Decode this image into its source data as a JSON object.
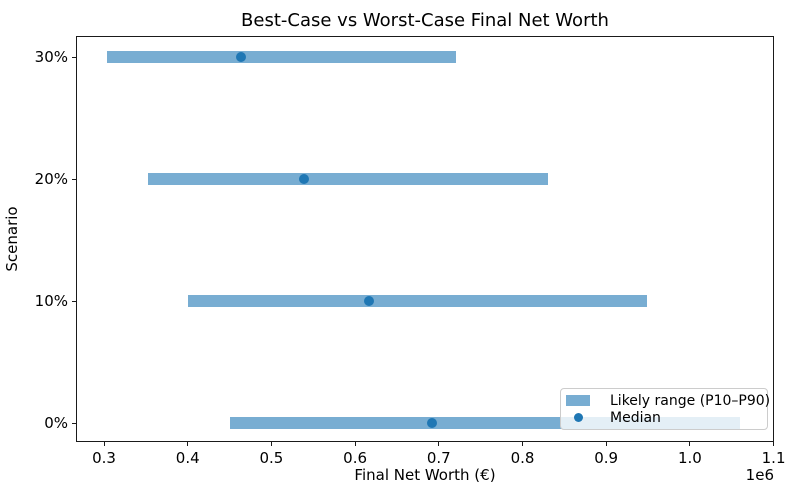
{
  "chart_data": {
    "type": "bar",
    "subtype": "horizontal-range-bars-with-median-dots",
    "title": "Best-Case vs Worst-Case Final Net Worth",
    "xlabel": "Final Net Worth (€)",
    "ylabel": "Scenario",
    "x_offset_label": "1e6",
    "categories": [
      "0%",
      "10%",
      "20%",
      "30%"
    ],
    "series": [
      {
        "name": "Likely range (P10–P90)",
        "type": "range-bar",
        "p10": [
          450000,
          400000,
          352000,
          304000
        ],
        "p90": [
          1060000,
          949000,
          831000,
          721000
        ]
      },
      {
        "name": "Median",
        "type": "scatter",
        "values": [
          692000,
          617000,
          539000,
          464000
        ]
      }
    ],
    "xlim": [
      266500,
      1100500
    ],
    "xticks": [
      300000,
      400000,
      500000,
      600000,
      700000,
      800000,
      900000,
      1000000,
      1100000
    ],
    "xtick_labels": [
      "0.3",
      "0.4",
      "0.5",
      "0.6",
      "0.7",
      "0.8",
      "0.9",
      "1.0",
      "1.1"
    ],
    "grid": false,
    "legend_position": "lower right",
    "colors": {
      "range_bar": "#78add2",
      "median_dot": "#1f77b4",
      "spine": "#1a1a1a",
      "legend_border": "#cccccc"
    }
  }
}
